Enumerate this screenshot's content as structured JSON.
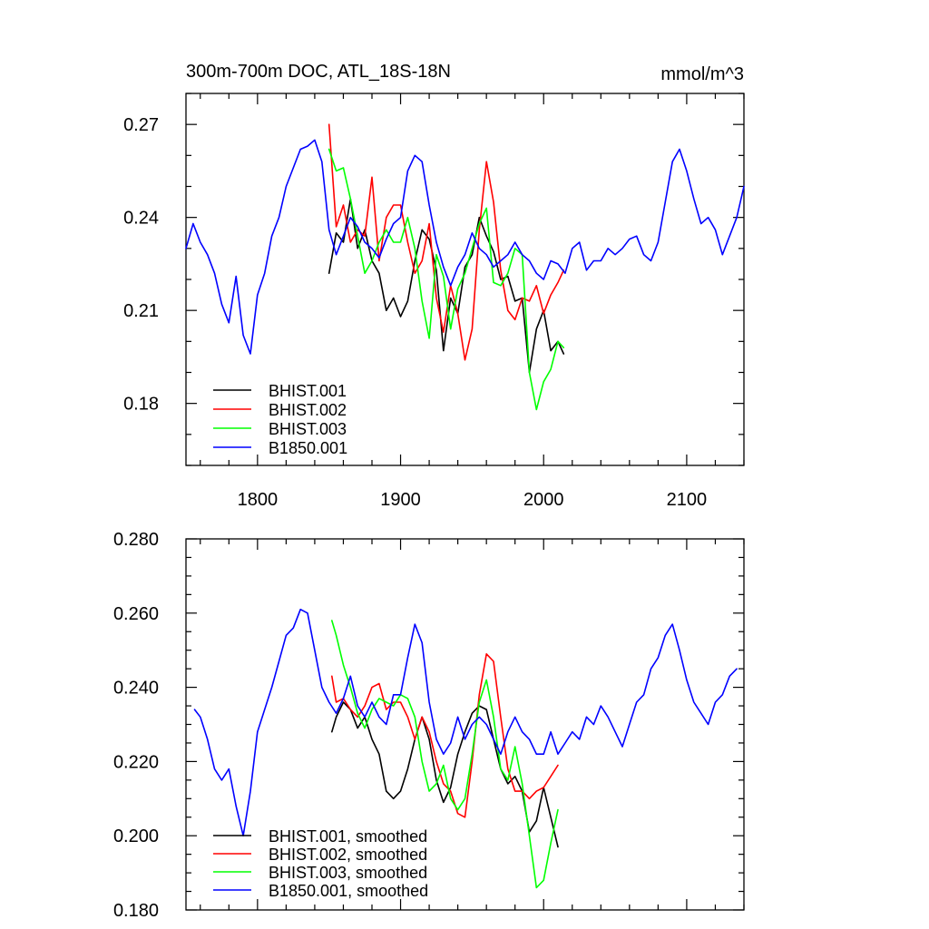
{
  "chart_data": [
    {
      "type": "line",
      "title": "300m-700m DOC, ATL_18S-18N",
      "units": "mmol/m^3",
      "xlim": [
        1750,
        2140
      ],
      "ylim": [
        0.16,
        0.28
      ],
      "x_ticks": [
        1800,
        1900,
        2000,
        2100
      ],
      "x_minor_step": 20,
      "y_ticks": [
        0.18,
        0.21,
        0.24,
        0.27
      ],
      "y_tick_labels": [
        "0.18",
        "0.21",
        "0.24",
        "0.27"
      ],
      "y_minor_step": 0.01,
      "legend_position": "bottom-left",
      "series": [
        {
          "name": "BHIST.001",
          "color": "#000000",
          "x": [
            1850,
            1855,
            1860,
            1865,
            1870,
            1875,
            1880,
            1885,
            1890,
            1895,
            1900,
            1905,
            1910,
            1915,
            1920,
            1925,
            1930,
            1935,
            1940,
            1945,
            1950,
            1955,
            1960,
            1965,
            1970,
            1975,
            1980,
            1985,
            1990,
            1995,
            2000,
            2005,
            2010,
            2014
          ],
          "y": [
            0.222,
            0.235,
            0.232,
            0.246,
            0.23,
            0.236,
            0.226,
            0.222,
            0.21,
            0.214,
            0.208,
            0.213,
            0.226,
            0.236,
            0.233,
            0.223,
            0.197,
            0.214,
            0.209,
            0.224,
            0.228,
            0.24,
            0.234,
            0.229,
            0.22,
            0.221,
            0.213,
            0.214,
            0.19,
            0.204,
            0.21,
            0.197,
            0.2,
            0.196
          ]
        },
        {
          "name": "BHIST.002",
          "color": "#ff0000",
          "x": [
            1850,
            1855,
            1860,
            1865,
            1870,
            1875,
            1880,
            1885,
            1890,
            1895,
            1900,
            1905,
            1910,
            1915,
            1920,
            1925,
            1930,
            1935,
            1940,
            1945,
            1950,
            1955,
            1960,
            1965,
            1970,
            1975,
            1980,
            1985,
            1990,
            1995,
            2000,
            2005,
            2010,
            2014
          ],
          "y": [
            0.27,
            0.237,
            0.244,
            0.232,
            0.236,
            0.234,
            0.253,
            0.226,
            0.24,
            0.244,
            0.244,
            0.232,
            0.222,
            0.226,
            0.238,
            0.214,
            0.203,
            0.218,
            0.209,
            0.194,
            0.204,
            0.236,
            0.258,
            0.245,
            0.223,
            0.21,
            0.207,
            0.214,
            0.213,
            0.218,
            0.209,
            0.215,
            0.219,
            0.223
          ]
        },
        {
          "name": "BHIST.003",
          "color": "#00ff00",
          "x": [
            1850,
            1855,
            1860,
            1865,
            1870,
            1875,
            1880,
            1885,
            1890,
            1895,
            1900,
            1905,
            1910,
            1915,
            1920,
            1925,
            1930,
            1935,
            1940,
            1945,
            1950,
            1955,
            1960,
            1965,
            1970,
            1975,
            1980,
            1985,
            1990,
            1995,
            2000,
            2005,
            2010,
            2014
          ],
          "y": [
            0.262,
            0.255,
            0.256,
            0.246,
            0.234,
            0.222,
            0.226,
            0.232,
            0.236,
            0.232,
            0.232,
            0.24,
            0.23,
            0.213,
            0.201,
            0.228,
            0.221,
            0.204,
            0.217,
            0.222,
            0.23,
            0.238,
            0.243,
            0.219,
            0.218,
            0.222,
            0.23,
            0.228,
            0.19,
            0.178,
            0.187,
            0.191,
            0.2,
            0.198
          ]
        },
        {
          "name": "B1850.001",
          "color": "#0000ff",
          "x": [
            1750,
            1755,
            1760,
            1765,
            1770,
            1775,
            1780,
            1785,
            1790,
            1795,
            1800,
            1805,
            1810,
            1815,
            1820,
            1825,
            1830,
            1835,
            1840,
            1845,
            1850,
            1855,
            1860,
            1865,
            1870,
            1875,
            1880,
            1885,
            1890,
            1895,
            1900,
            1905,
            1910,
            1915,
            1920,
            1925,
            1930,
            1935,
            1940,
            1945,
            1950,
            1955,
            1960,
            1965,
            1970,
            1975,
            1980,
            1985,
            1990,
            1995,
            2000,
            2005,
            2010,
            2015,
            2020,
            2025,
            2030,
            2035,
            2040,
            2045,
            2050,
            2055,
            2060,
            2065,
            2070,
            2075,
            2080,
            2085,
            2090,
            2095,
            2100,
            2105,
            2110,
            2115,
            2120,
            2125,
            2130,
            2135,
            2140
          ],
          "y": [
            0.23,
            0.238,
            0.232,
            0.228,
            0.222,
            0.212,
            0.206,
            0.221,
            0.202,
            0.196,
            0.215,
            0.222,
            0.234,
            0.24,
            0.25,
            0.256,
            0.262,
            0.263,
            0.265,
            0.258,
            0.236,
            0.228,
            0.234,
            0.24,
            0.237,
            0.232,
            0.23,
            0.227,
            0.233,
            0.238,
            0.24,
            0.255,
            0.26,
            0.258,
            0.244,
            0.232,
            0.224,
            0.218,
            0.224,
            0.228,
            0.235,
            0.23,
            0.228,
            0.224,
            0.226,
            0.228,
            0.232,
            0.228,
            0.226,
            0.222,
            0.22,
            0.226,
            0.225,
            0.222,
            0.23,
            0.232,
            0.223,
            0.226,
            0.226,
            0.23,
            0.228,
            0.23,
            0.233,
            0.234,
            0.228,
            0.226,
            0.232,
            0.245,
            0.258,
            0.262,
            0.255,
            0.246,
            0.238,
            0.24,
            0.236,
            0.228,
            0.234,
            0.24,
            0.25
          ]
        }
      ]
    },
    {
      "type": "line",
      "xlim": [
        1750,
        2140
      ],
      "ylim": [
        0.18,
        0.28
      ],
      "x_ticks": [
        1800,
        1900,
        2000,
        2100
      ],
      "x_minor_step": 20,
      "y_ticks": [
        0.18,
        0.2,
        0.22,
        0.24,
        0.26,
        0.28
      ],
      "y_tick_labels": [
        "0.180",
        "0.200",
        "0.220",
        "0.240",
        "0.260",
        "0.280"
      ],
      "y_minor_step": 0.005,
      "legend_position": "bottom-left",
      "series": [
        {
          "name": "BHIST.001, smoothed",
          "color": "#000000",
          "x": [
            1852,
            1855,
            1860,
            1865,
            1870,
            1875,
            1880,
            1885,
            1890,
            1895,
            1900,
            1905,
            1910,
            1915,
            1920,
            1925,
            1930,
            1935,
            1940,
            1945,
            1950,
            1955,
            1960,
            1965,
            1970,
            1975,
            1980,
            1985,
            1990,
            1995,
            2000,
            2005,
            2010
          ],
          "y": [
            0.228,
            0.232,
            0.236,
            0.234,
            0.229,
            0.232,
            0.226,
            0.222,
            0.212,
            0.21,
            0.212,
            0.218,
            0.226,
            0.232,
            0.226,
            0.215,
            0.209,
            0.213,
            0.222,
            0.228,
            0.233,
            0.235,
            0.234,
            0.226,
            0.218,
            0.214,
            0.216,
            0.212,
            0.201,
            0.204,
            0.213,
            0.205,
            0.197
          ]
        },
        {
          "name": "BHIST.002, smoothed",
          "color": "#ff0000",
          "x": [
            1852,
            1855,
            1860,
            1865,
            1870,
            1875,
            1880,
            1885,
            1890,
            1895,
            1900,
            1905,
            1910,
            1915,
            1920,
            1925,
            1930,
            1935,
            1940,
            1945,
            1950,
            1955,
            1960,
            1965,
            1970,
            1975,
            1980,
            1985,
            1990,
            1995,
            2000,
            2005,
            2010
          ],
          "y": [
            0.243,
            0.236,
            0.237,
            0.234,
            0.232,
            0.235,
            0.24,
            0.241,
            0.234,
            0.236,
            0.236,
            0.232,
            0.226,
            0.232,
            0.228,
            0.22,
            0.214,
            0.212,
            0.206,
            0.205,
            0.22,
            0.238,
            0.249,
            0.247,
            0.232,
            0.218,
            0.212,
            0.212,
            0.21,
            0.212,
            0.213,
            0.216,
            0.219
          ]
        },
        {
          "name": "BHIST.003, smoothed",
          "color": "#00ff00",
          "x": [
            1852,
            1855,
            1860,
            1865,
            1870,
            1875,
            1880,
            1885,
            1890,
            1895,
            1900,
            1905,
            1910,
            1915,
            1920,
            1925,
            1930,
            1935,
            1940,
            1945,
            1950,
            1955,
            1960,
            1965,
            1970,
            1975,
            1980,
            1985,
            1990,
            1995,
            2000,
            2005,
            2010
          ],
          "y": [
            0.258,
            0.254,
            0.246,
            0.24,
            0.233,
            0.229,
            0.234,
            0.237,
            0.236,
            0.235,
            0.238,
            0.237,
            0.232,
            0.22,
            0.212,
            0.214,
            0.219,
            0.21,
            0.207,
            0.21,
            0.222,
            0.236,
            0.242,
            0.232,
            0.218,
            0.215,
            0.224,
            0.214,
            0.2,
            0.186,
            0.188,
            0.198,
            0.207
          ]
        },
        {
          "name": "B1850.001, smoothed",
          "color": "#0000ff",
          "x": [
            1756,
            1760,
            1765,
            1770,
            1775,
            1780,
            1785,
            1790,
            1795,
            1800,
            1805,
            1810,
            1815,
            1820,
            1825,
            1830,
            1835,
            1840,
            1845,
            1850,
            1855,
            1860,
            1865,
            1870,
            1875,
            1880,
            1885,
            1890,
            1895,
            1900,
            1905,
            1910,
            1915,
            1920,
            1925,
            1930,
            1935,
            1940,
            1945,
            1950,
            1955,
            1960,
            1965,
            1970,
            1975,
            1980,
            1985,
            1990,
            1995,
            2000,
            2005,
            2010,
            2015,
            2020,
            2025,
            2030,
            2035,
            2040,
            2045,
            2050,
            2055,
            2060,
            2065,
            2070,
            2075,
            2080,
            2085,
            2090,
            2095,
            2100,
            2105,
            2110,
            2115,
            2120,
            2125,
            2130,
            2135
          ],
          "y": [
            0.234,
            0.232,
            0.226,
            0.218,
            0.215,
            0.218,
            0.208,
            0.2,
            0.212,
            0.228,
            0.234,
            0.24,
            0.247,
            0.254,
            0.256,
            0.261,
            0.26,
            0.25,
            0.24,
            0.236,
            0.233,
            0.237,
            0.243,
            0.235,
            0.232,
            0.236,
            0.232,
            0.23,
            0.238,
            0.238,
            0.248,
            0.257,
            0.252,
            0.236,
            0.226,
            0.222,
            0.225,
            0.232,
            0.226,
            0.23,
            0.232,
            0.23,
            0.226,
            0.222,
            0.228,
            0.232,
            0.228,
            0.226,
            0.222,
            0.222,
            0.228,
            0.222,
            0.225,
            0.228,
            0.226,
            0.232,
            0.23,
            0.235,
            0.232,
            0.228,
            0.224,
            0.23,
            0.236,
            0.238,
            0.245,
            0.248,
            0.254,
            0.257,
            0.25,
            0.242,
            0.236,
            0.233,
            0.23,
            0.236,
            0.238,
            0.243,
            0.245
          ]
        }
      ]
    }
  ]
}
